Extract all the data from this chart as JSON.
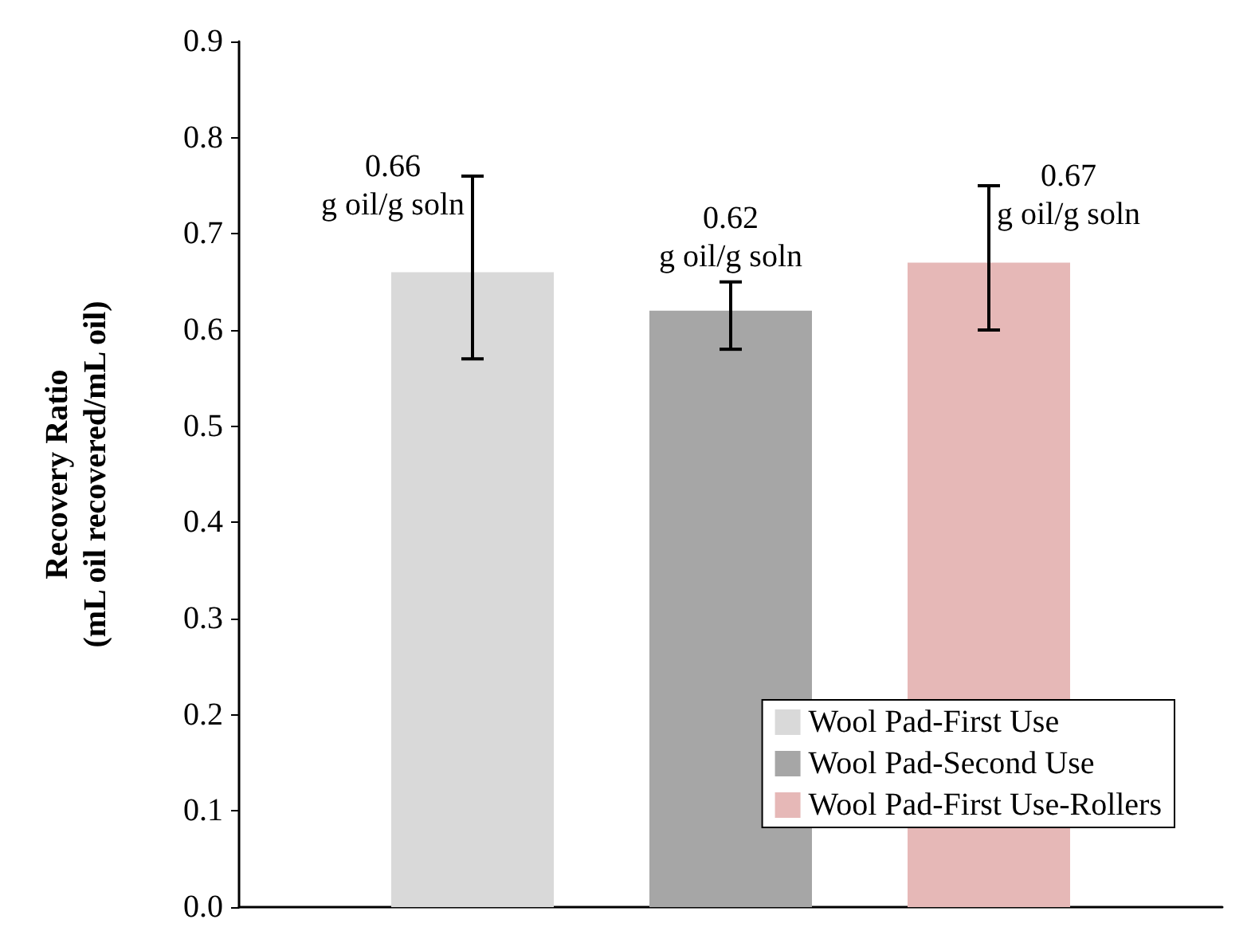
{
  "chart_data": {
    "type": "bar",
    "ylabel": "Recovery Ratio\n(mL oil recovered/mL oil)",
    "categories": [
      null
    ],
    "series": [
      {
        "name": "Wool Pad-First Use",
        "color": "#d9d9d9",
        "values": [
          0.66
        ],
        "errors": [
          [
            0.57,
            0.76
          ]
        ],
        "value_labels": [
          "0.66\ng oil/g soln"
        ]
      },
      {
        "name": "Wool Pad-Second Use",
        "color": "#a6a6a6",
        "values": [
          0.62
        ],
        "errors": [
          [
            0.58,
            0.65
          ]
        ],
        "value_labels": [
          "0.62\ng oil/g soln"
        ]
      },
      {
        "name": "Wool Pad-First Use-Rollers",
        "color": "#e6b8b7",
        "values": [
          0.67
        ],
        "errors": [
          [
            0.6,
            0.75
          ]
        ],
        "value_labels": [
          "0.67\ng oil/g soln"
        ]
      }
    ],
    "ylim": [
      0,
      0.9
    ],
    "yticks": [
      {
        "value": 0,
        "label": "0.0"
      },
      0.1,
      0.2,
      0.3,
      0.4,
      0.5,
      0.6,
      0.7,
      0.8,
      0.9
    ],
    "grid": false,
    "legend": "bottom right"
  }
}
